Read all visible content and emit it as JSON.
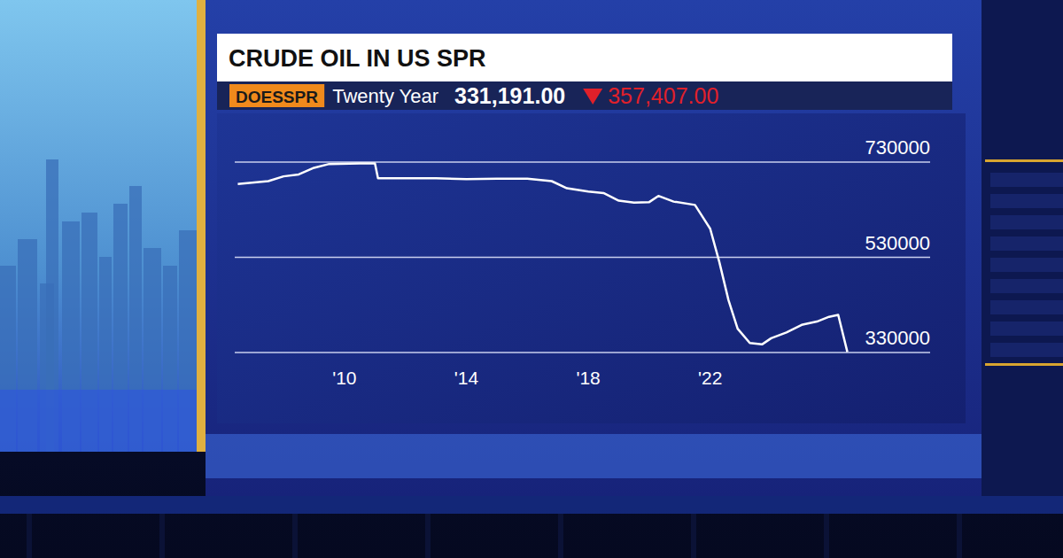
{
  "chart_data": {
    "type": "line",
    "title": "CRUDE OIL IN US SPR",
    "ticker": "DOESSPR",
    "subtitle": "Twenty Year",
    "last_value_label": "331,191.00",
    "change_label": "357,407.00",
    "x": [
      2006.5,
      2007.5,
      2008.0,
      2008.5,
      2009.0,
      2009.5,
      2010.5,
      2011.0,
      2011.1,
      2013.0,
      2014.0,
      2015.0,
      2016.0,
      2016.8,
      2017.3,
      2018.0,
      2018.5,
      2019.0,
      2019.5,
      2020.0,
      2020.3,
      2020.8,
      2021.5,
      2022.0,
      2022.3,
      2022.6,
      2022.9,
      2023.3,
      2023.7,
      2024.0,
      2024.5,
      2025.0,
      2025.5,
      2025.9,
      2026.2,
      2026.5
    ],
    "values": [
      684000,
      690000,
      700000,
      704000,
      718000,
      726000,
      727000,
      727000,
      696000,
      696000,
      694000,
      695000,
      695000,
      690000,
      675000,
      668000,
      665000,
      649000,
      645000,
      646000,
      659000,
      647000,
      640000,
      590000,
      520000,
      440000,
      380000,
      350000,
      347000,
      360000,
      372000,
      388000,
      395000,
      405000,
      409000,
      331191
    ],
    "color": "#ffffff",
    "xlim": [
      2006.4,
      2026.6
    ],
    "xticks": [
      {
        "value": 2010,
        "label": "'10"
      },
      {
        "value": 2014,
        "label": "'14"
      },
      {
        "value": 2018,
        "label": "'18"
      },
      {
        "value": 2022,
        "label": "'22"
      }
    ],
    "ylim": [
      330000,
      730000
    ],
    "yticks": [
      330000,
      530000,
      730000
    ],
    "grid": true
  }
}
